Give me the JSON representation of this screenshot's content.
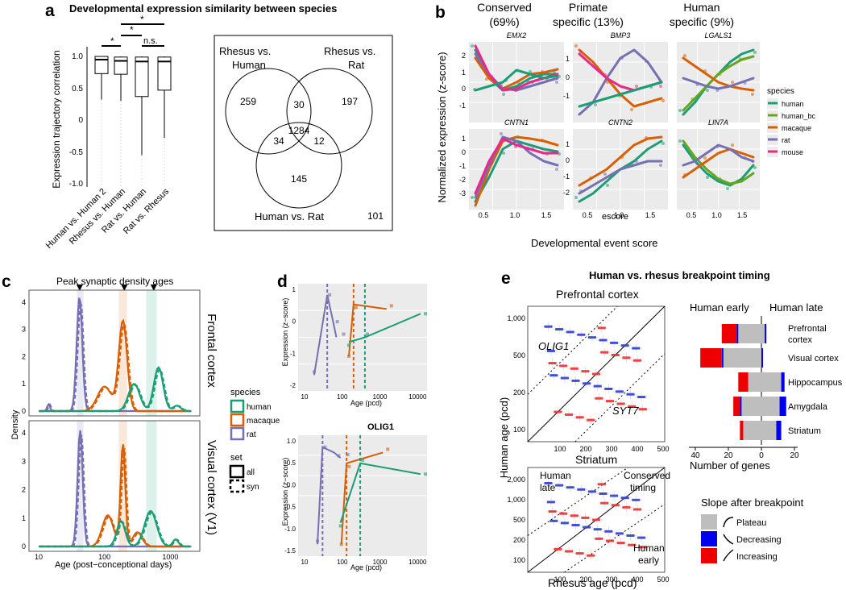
{
  "panel_labels": [
    "a",
    "b",
    "c",
    "d",
    "e"
  ],
  "a": {
    "title": "Developmental expression similarity between species",
    "ylabel": "Expression trajectory correlation",
    "yticks": [
      "1.0",
      "0.5",
      "0",
      "-0.5",
      "-1.0"
    ],
    "sig_labels": [
      "*",
      "*",
      "*",
      "n.s."
    ],
    "venn": {
      "set_a": [
        "Rhesus vs.",
        "Human"
      ],
      "set_b": [
        "Rhesus vs.",
        "Rat"
      ],
      "set_c": "Human vs. Rat",
      "regions": [
        "259",
        "30",
        "197",
        "1284",
        "34",
        "12",
        "145",
        "101"
      ]
    }
  },
  "b": {
    "column_titles": [
      [
        "Conserved",
        "(69%)"
      ],
      [
        "Primate",
        "specific (13%)"
      ],
      [
        "Human",
        "specific (9%)"
      ]
    ],
    "genes": [
      "EMX2",
      "BMP3",
      "LGALS1",
      "CNTN1",
      "CNTN2",
      "LIN7A"
    ],
    "ylabel": "Normalized expression (z-score)",
    "xlabel": "escore",
    "xlabel_outer": "Developmental event score",
    "xticks": [
      "0.5",
      "1.0",
      "1.5"
    ],
    "yticks_r1": [
      "2",
      "1",
      "0",
      "-1"
    ],
    "yticks_r2": [
      "1",
      "0",
      "-1",
      "-2",
      "-3"
    ],
    "yticks_r1b": [
      "1",
      "0",
      "-1"
    ],
    "yticks_r2b": [
      "1",
      "0",
      "-1",
      "-2"
    ],
    "legend_title": "species",
    "legend": [
      "human",
      "human_bc",
      "macaque",
      "rat",
      "mouse"
    ],
    "colors": [
      "#1b9e77",
      "#66a61e",
      "#d95f02",
      "#7570b3",
      "#e7298a"
    ]
  },
  "c": {
    "top_label": "Peak synaptic density ages",
    "ylabel": "Density",
    "xlabel": "Age (post−conceptional days)",
    "xticks": [
      "10",
      "100",
      "1000"
    ],
    "yticks": [
      "4",
      "3",
      "2",
      "1",
      "0"
    ],
    "row_labels": [
      "Frontal cortex",
      "Visual cortex (V1)"
    ],
    "legend_species_title": "species",
    "legend_species": [
      "human",
      "macaque",
      "rat"
    ],
    "legend_set_title": "set",
    "legend_set": [
      "all",
      "syn"
    ]
  },
  "d": {
    "subtitle": "OLIG1",
    "ylabel": "Expression (z−score)",
    "xlabel": "Age (pcd)",
    "xticks": [
      "10",
      "100",
      "1000",
      "10000"
    ],
    "yticks_top": [
      "1",
      "0",
      "-1",
      "-2"
    ],
    "yticks_bot": [
      "1.0",
      "0.5",
      "0.0",
      "-0.5",
      "-1.0",
      "-1.5"
    ]
  },
  "e": {
    "title": "Human vs. rhesus breakpoint timing",
    "pfc_title": "Prefrontal cortex",
    "str_title": "Striatum",
    "ylabel": "Human age (pcd)",
    "xlabel": "Rhesus age (pcd)",
    "yticks_top": [
      "1,000",
      "500",
      "200",
      "100"
    ],
    "yticks_bot": [
      "2,000",
      "1,000",
      "500",
      "200",
      "100"
    ],
    "xticks_top": [
      "100",
      "200",
      "300",
      "400",
      "500"
    ],
    "xticks_bot": [
      "100",
      "200",
      "300",
      "400",
      "500"
    ],
    "gene_labels": [
      "OLIG1",
      "SYT7"
    ],
    "annotations": [
      "Human",
      "late",
      "Conserved",
      "timing",
      "Human",
      "early"
    ],
    "bar_header": [
      "Human early",
      "Human late"
    ],
    "regions": [
      "Prefrontal",
      "cortex",
      "Visual cortex",
      "Hippocampus",
      "Amygdala",
      "Striatum"
    ],
    "bar_xticks": [
      "40",
      "20",
      "0",
      "20"
    ],
    "bar_xlabel": "Number of genes",
    "slope_title": "Slope after breakpoint",
    "slope_legend": [
      "Plateau",
      "Decreasing",
      "Increasing"
    ],
    "slope_colors": [
      "#bebebe",
      "#0000ee",
      "#ee0000"
    ]
  },
  "chart_data": [
    {
      "type": "box",
      "id": "a-box",
      "categories": [
        "Human vs. Human 2",
        "Rhesus vs. Human",
        "Rat vs. Human",
        "Rat vs. Rhesus"
      ],
      "series": [
        {
          "name": "Human vs. Human 2",
          "whisker_low": 0.32,
          "q1": 0.73,
          "median": 0.95,
          "q3": 1.0,
          "whisker_high": 1.0
        },
        {
          "name": "Rhesus vs. Human",
          "whisker_low": 0.3,
          "q1": 0.72,
          "median": 0.93,
          "q3": 0.99,
          "whisker_high": 1.0
        },
        {
          "name": "Rat vs. Human",
          "whisker_low": -0.55,
          "q1": 0.37,
          "median": 0.92,
          "q3": 0.99,
          "whisker_high": 1.0
        },
        {
          "name": "Rat vs. Rhesus",
          "whisker_low": -0.28,
          "q1": 0.47,
          "median": 0.92,
          "q3": 0.99,
          "whisker_high": 1.0
        }
      ],
      "ylim": [
        -1.05,
        1.05
      ]
    },
    {
      "type": "bar",
      "id": "e-bars",
      "categories": [
        "Prefrontal cortex",
        "Visual cortex",
        "Hippocampus",
        "Amygdala",
        "Striatum"
      ],
      "early": [
        {
          "plateau": 14,
          "decreasing": 1,
          "increasing": 9
        },
        {
          "plateau": 23,
          "decreasing": 1,
          "increasing": 13
        },
        {
          "plateau": 8,
          "decreasing": 0,
          "increasing": 6
        },
        {
          "plateau": 12,
          "decreasing": 1,
          "increasing": 4
        },
        {
          "plateau": 11,
          "decreasing": 0,
          "increasing": 2
        }
      ],
      "late": [
        {
          "plateau": 2,
          "decreasing": 1,
          "increasing": 0
        },
        {
          "plateau": 0,
          "decreasing": 1,
          "increasing": 0
        },
        {
          "plateau": 12,
          "decreasing": 2,
          "increasing": 0
        },
        {
          "plateau": 11,
          "decreasing": 4,
          "increasing": 0
        },
        {
          "plateau": 9,
          "decreasing": 3,
          "increasing": 0
        }
      ],
      "xlim": [
        -45,
        22
      ]
    }
  ]
}
